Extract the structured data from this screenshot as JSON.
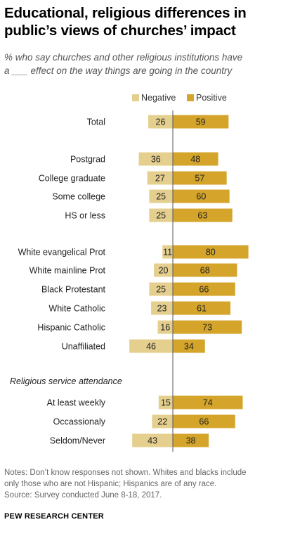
{
  "title_line1": "Educational, religious differences in",
  "title_line2": "public’s views of churches’ impact",
  "subtitle_line1": "% who say churches and other religious institutions have",
  "subtitle_line2": "a ___ effect on the way things are going in the country",
  "colors": {
    "negative": "#e5cf8f",
    "positive": "#d4a52a",
    "axis": "#555555"
  },
  "chart_data": {
    "type": "bar",
    "orientation": "horizontal-diverging",
    "legend": {
      "position": "top",
      "entries": [
        "Negative",
        "Positive"
      ]
    },
    "section_label": "Religious service attendance",
    "categories": [
      "Total",
      "Postgrad",
      "College graduate",
      "Some college",
      "HS or less",
      "White evangelical Prot",
      "White mainline Prot",
      "Black Protestant",
      "White Catholic",
      "Hispanic Catholic",
      "Unaffiliated",
      "At least weekly",
      "Occassionaly",
      "Seldom/Never"
    ],
    "series": [
      {
        "name": "Negative",
        "values": [
          26,
          36,
          27,
          25,
          25,
          11,
          20,
          25,
          23,
          16,
          46,
          15,
          22,
          43
        ]
      },
      {
        "name": "Positive",
        "values": [
          59,
          48,
          57,
          60,
          63,
          80,
          68,
          66,
          61,
          73,
          34,
          74,
          66,
          38
        ]
      }
    ]
  },
  "notes_line1": "Notes: Don’t know responses not shown. Whites and blacks include",
  "notes_line2": "only those who are not Hispanic; Hispanics are of any race.",
  "source": "Source: Survey conducted June 8-18, 2017.",
  "footer": "PEW RESEARCH CENTER"
}
